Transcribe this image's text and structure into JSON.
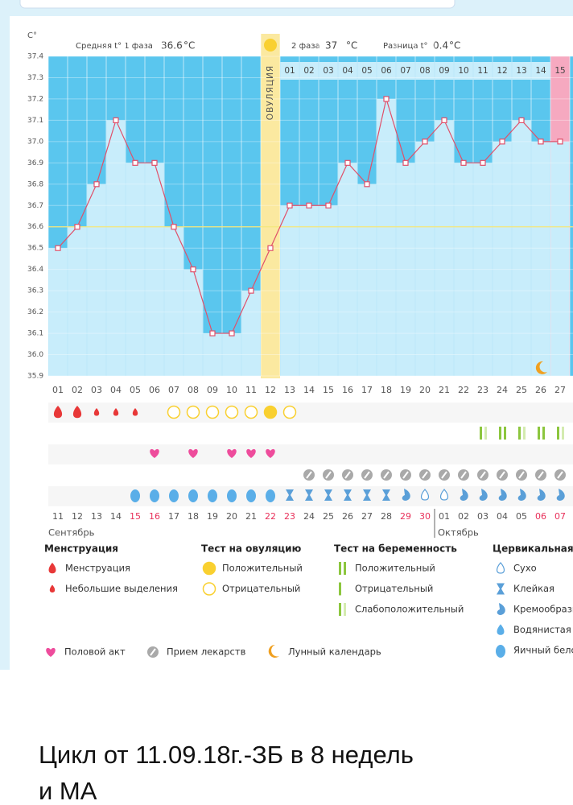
{
  "chart_data": {
    "type": "line",
    "y_axis_label": "C°",
    "phase1": {
      "label": "Средняя t° 1 фаза",
      "value": 36.6,
      "unit": "°C"
    },
    "phase2": {
      "label": "2 фаза",
      "value": 37.0,
      "unit": "°C"
    },
    "difference": {
      "label": "Разница t°",
      "value": 0.4,
      "unit": "°C"
    },
    "ovulation_label": "ОВУЛЯЦИЯ",
    "categories": [
      "01",
      "02",
      "03",
      "04",
      "05",
      "06",
      "07",
      "08",
      "09",
      "10",
      "11",
      "12",
      "13",
      "14",
      "15",
      "16",
      "17",
      "18",
      "19",
      "20",
      "21",
      "22",
      "23",
      "24",
      "25",
      "26",
      "27"
    ],
    "values": [
      36.5,
      36.6,
      36.8,
      37.1,
      36.9,
      36.9,
      36.6,
      36.4,
      36.1,
      36.1,
      36.3,
      36.5,
      36.7,
      36.7,
      36.7,
      36.9,
      36.8,
      37.2,
      36.9,
      37.0,
      37.1,
      36.9,
      36.9,
      37.0,
      37.1,
      37.0,
      37.0
    ],
    "phase2_days": [
      "01",
      "02",
      "03",
      "04",
      "05",
      "06",
      "07",
      "08",
      "09",
      "10",
      "11",
      "12",
      "13",
      "14",
      "15"
    ],
    "dates": [
      "11",
      "12",
      "13",
      "14",
      "15",
      "16",
      "17",
      "18",
      "19",
      "20",
      "21",
      "22",
      "23",
      "24",
      "25",
      "26",
      "27",
      "28",
      "29",
      "30",
      "01",
      "02",
      "03",
      "04",
      "05",
      "06",
      "07"
    ],
    "months": [
      "Сентябрь",
      "Октябрь"
    ],
    "color": "#e0506a",
    "ylim": [
      35.9,
      37.4
    ],
    "yticks": [
      35.9,
      {
        "value": 36.0,
        "label": "36.0"
      },
      36.1,
      36.2,
      36.3,
      36.4,
      36.5,
      36.6,
      36.7,
      36.8,
      36.9,
      {
        "value": 37.0,
        "label": "37.0"
      },
      37.1,
      37.2,
      37.3,
      37.4
    ],
    "grid": true
  },
  "legend": {
    "groups": [
      {
        "title": "Менструация",
        "items": [
          "Менструация",
          "Небольшие выделения"
        ]
      },
      {
        "title": "Тест на овуляцию",
        "items": [
          "Положительный",
          "Отрицательный"
        ]
      },
      {
        "title": "Тест на беременность",
        "items": [
          "Положительный",
          "Отрицательный",
          "Слабоположительный"
        ]
      },
      {
        "title": "Цервикальная жидкость",
        "items": [
          "Сухо",
          "Клейкая",
          "Кремообразная",
          "Водянистая",
          "Яичный белок"
        ]
      }
    ],
    "extra": [
      "Половой акт",
      "Прием лекарств",
      "Лунный календарь"
    ]
  },
  "caption": [
    "Цикл от 11.09.18г.-ЗБ в 8 недель",
    "и МА"
  ]
}
